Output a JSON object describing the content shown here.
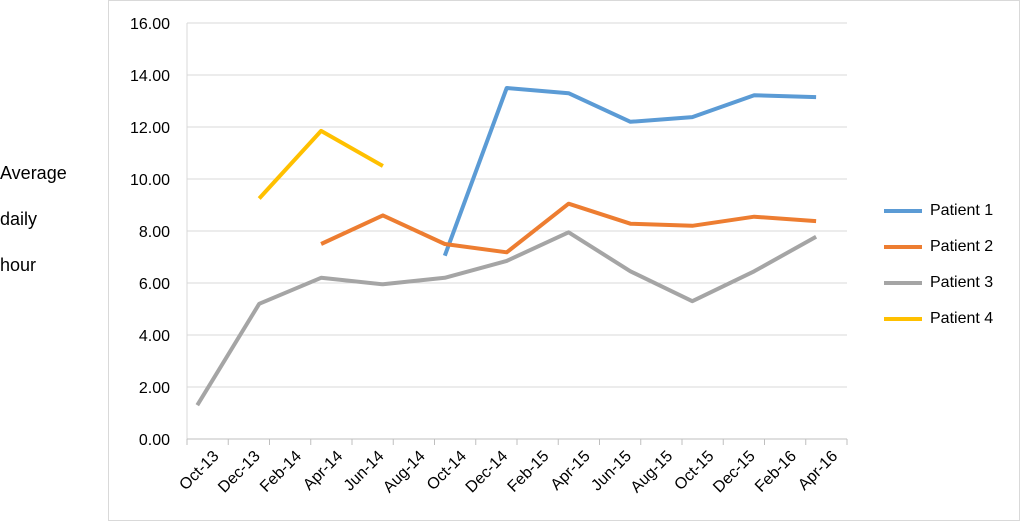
{
  "chart_data": {
    "type": "line",
    "ylabel": [
      "Average",
      "daily",
      "hour"
    ],
    "xlabel": "",
    "title": "",
    "categories": [
      "Oct-13",
      "Dec-13",
      "Feb-14",
      "Apr-14",
      "Jun-14",
      "Aug-14",
      "Oct-14",
      "Dec-14",
      "Feb-15",
      "Apr-15",
      "Jun-15",
      "Aug-15",
      "Oct-15",
      "Dec-15",
      "Feb-16",
      "Apr-16"
    ],
    "yticks": [
      "0.00",
      "2.00",
      "4.00",
      "6.00",
      "8.00",
      "10.00",
      "12.00",
      "14.00",
      "16.00"
    ],
    "ylim": [
      0,
      16
    ],
    "grid": true,
    "legend_position": "right",
    "series": [
      {
        "name": "Patient 1",
        "color": "#5b9bd5",
        "points": [
          [
            6.25,
            7.05
          ],
          [
            7.75,
            13.5
          ],
          [
            9.25,
            13.3
          ],
          [
            10.75,
            12.2
          ],
          [
            12.25,
            12.38
          ],
          [
            13.75,
            13.22
          ],
          [
            15.25,
            13.15
          ]
        ]
      },
      {
        "name": "Patient 2",
        "color": "#ed7d31",
        "points": [
          [
            3.25,
            7.5
          ],
          [
            4.75,
            8.6
          ],
          [
            6.25,
            7.5
          ],
          [
            7.75,
            7.18
          ],
          [
            9.25,
            9.05
          ],
          [
            10.75,
            8.28
          ],
          [
            12.25,
            8.2
          ],
          [
            13.75,
            8.55
          ],
          [
            15.25,
            8.38
          ]
        ]
      },
      {
        "name": "Patient 3",
        "color": "#a5a5a5",
        "points": [
          [
            0.25,
            1.3
          ],
          [
            1.75,
            5.2
          ],
          [
            3.25,
            6.2
          ],
          [
            4.75,
            5.95
          ],
          [
            6.25,
            6.2
          ],
          [
            7.75,
            6.85
          ],
          [
            9.25,
            7.95
          ],
          [
            10.75,
            6.45
          ],
          [
            12.25,
            5.3
          ],
          [
            13.75,
            6.45
          ],
          [
            15.25,
            7.78
          ]
        ]
      },
      {
        "name": "Patient 4",
        "color": "#ffc000",
        "points": [
          [
            1.75,
            9.25
          ],
          [
            3.25,
            11.85
          ],
          [
            4.75,
            10.5
          ]
        ]
      }
    ]
  }
}
